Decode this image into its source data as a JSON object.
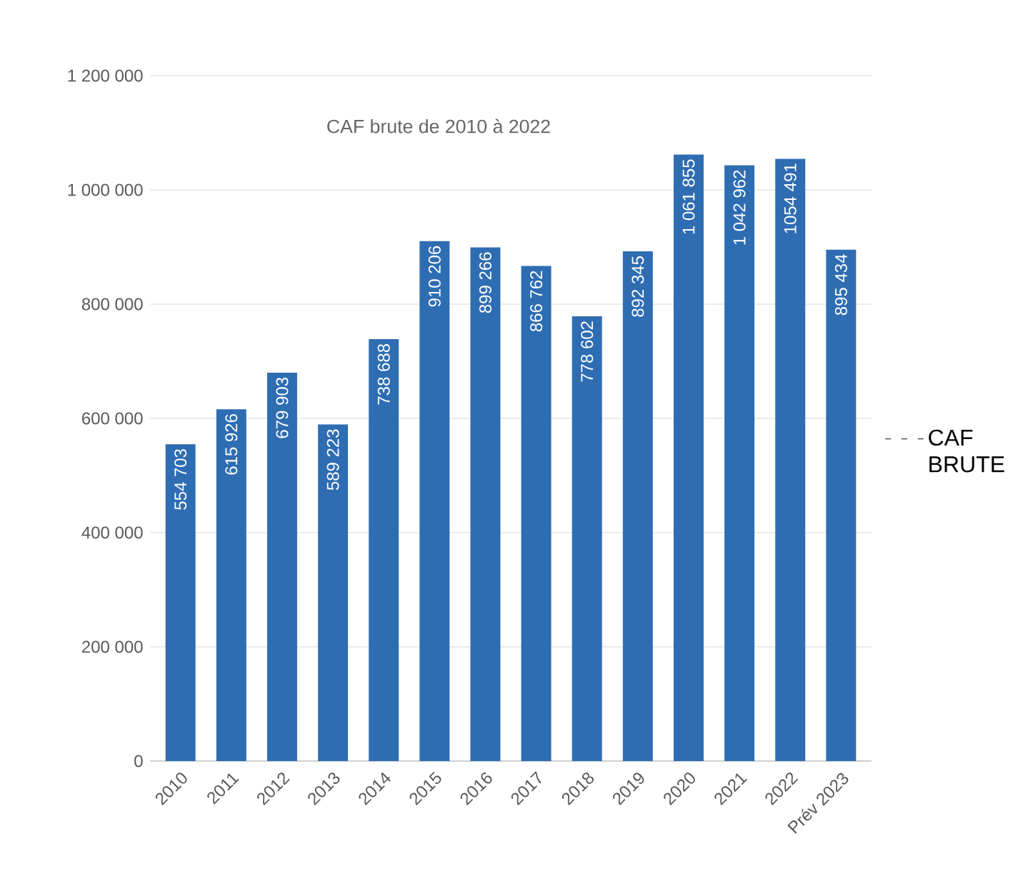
{
  "chart_data": {
    "type": "bar",
    "title": "CAF brute de 2010 à 2022",
    "categories": [
      "2010",
      "2011",
      "2012",
      "2013",
      "2014",
      "2015",
      "2016",
      "2017",
      "2018",
      "2019",
      "2020",
      "2021",
      "2022",
      "Prév 2023"
    ],
    "series": [
      {
        "name": "CAF BRUTE",
        "color": "#2f6db3",
        "values": [
          554703,
          615926,
          679903,
          589223,
          738688,
          910206,
          899266,
          866762,
          778602,
          892345,
          1061855,
          1042962,
          1054491,
          895434
        ],
        "value_labels": [
          "554 703",
          "615 926",
          "679 903",
          "589 223",
          "738 688",
          "910 206",
          "899 266",
          "866 762",
          "778 602",
          "892 345",
          "1 061 855",
          "1 042 962",
          "1054 491",
          "895 434"
        ]
      }
    ],
    "ylim": [
      0,
      1200000
    ],
    "yticks": [
      {
        "value": 0,
        "label": "0"
      },
      {
        "value": 200000,
        "label": "200 000"
      },
      {
        "value": 400000,
        "label": "400 000"
      },
      {
        "value": 600000,
        "label": "600 000"
      },
      {
        "value": 800000,
        "label": "800 000"
      },
      {
        "value": 1000000,
        "label": "1 000 000"
      },
      {
        "value": 1200000,
        "label": "1 200 000"
      }
    ],
    "grid": "y",
    "legend": "right"
  }
}
